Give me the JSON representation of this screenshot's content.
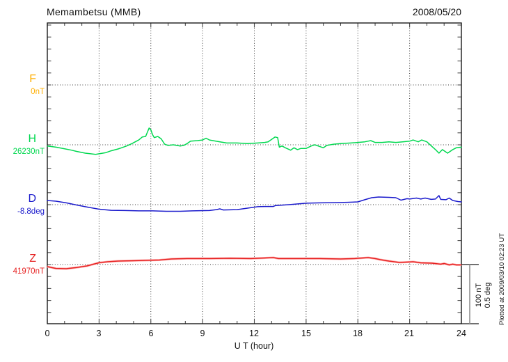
{
  "header": {
    "station_title": "Memambetsu (MMB)",
    "date": "2008/05/20"
  },
  "components": [
    {
      "id": "F",
      "label": "F",
      "value_label": "0nT",
      "color": "#FFAE00"
    },
    {
      "id": "H",
      "label": "H",
      "value_label": "26230nT",
      "color": "#00D84F"
    },
    {
      "id": "D",
      "label": "D",
      "value_label": "-8.8deg",
      "color": "#1A1ACC"
    },
    {
      "id": "Z",
      "label": "Z",
      "value_label": "41970nT",
      "color": "#E62222"
    }
  ],
  "x_axis": {
    "title": "U T (hour)",
    "ticks": [
      "0",
      "3",
      "6",
      "9",
      "12",
      "15",
      "18",
      "21",
      "24"
    ]
  },
  "scale_bar": {
    "line1": "100 nT",
    "line2": "0.5 deg"
  },
  "footer_note": "Plotted at 2009/03/10 02:23 UT",
  "colors": {
    "axis": "#1a1a1a",
    "tick": "#4a4a4a",
    "grid": "#3a3a3a",
    "scalebar": "#909090",
    "z_underlay": "#ffb0b0"
  },
  "chart_data": {
    "type": "line",
    "title": "Memambetsu (MMB) magnetogram 2008/05/20",
    "xlabel": "U T (hour)",
    "x_range": [
      0,
      24
    ],
    "x_tick_step": 3,
    "grid": "dotted vertical lines every 3 hours; dotted horizontal baseline per component",
    "legend_position": "left margin component labels",
    "scale": {
      "nT_per_division": 100,
      "deg_per_division": 0.5
    },
    "series": [
      {
        "name": "F",
        "unit": "nT",
        "baseline_value": 0,
        "per_div": 100,
        "note": "no data plotted",
        "points": []
      },
      {
        "name": "H",
        "unit": "nT",
        "baseline_value": 26230,
        "per_div": 100,
        "points": [
          [
            0,
            -2
          ],
          [
            0.5,
            -4
          ],
          [
            0.9,
            -6
          ],
          [
            1.4,
            -9
          ],
          [
            1.7,
            -11
          ],
          [
            2.2,
            -14
          ],
          [
            2.8,
            -16
          ],
          [
            3.0,
            -15
          ],
          [
            3.4,
            -13
          ],
          [
            3.7,
            -10
          ],
          [
            4.1,
            -7
          ],
          [
            4.3,
            -5
          ],
          [
            4.6,
            -2
          ],
          [
            4.9,
            2
          ],
          [
            5.1,
            5
          ],
          [
            5.3,
            8
          ],
          [
            5.5,
            13
          ],
          [
            5.7,
            14
          ],
          [
            5.8,
            21
          ],
          [
            5.9,
            28
          ],
          [
            6.0,
            25
          ],
          [
            6.1,
            17
          ],
          [
            6.2,
            12
          ],
          [
            6.4,
            14
          ],
          [
            6.6,
            10
          ],
          [
            6.8,
            1
          ],
          [
            7.0,
            -1
          ],
          [
            7.3,
            0
          ],
          [
            7.5,
            -1
          ],
          [
            7.7,
            -2
          ],
          [
            7.9,
            -1
          ],
          [
            8.1,
            2
          ],
          [
            8.3,
            6
          ],
          [
            8.7,
            7
          ],
          [
            9.0,
            8
          ],
          [
            9.2,
            11
          ],
          [
            9.4,
            8
          ],
          [
            9.6,
            7
          ],
          [
            10.0,
            5
          ],
          [
            10.4,
            3
          ],
          [
            11.0,
            3
          ],
          [
            11.6,
            2
          ],
          [
            12.2,
            3
          ],
          [
            12.6,
            4
          ],
          [
            12.8,
            5
          ],
          [
            13.0,
            9
          ],
          [
            13.2,
            13
          ],
          [
            13.35,
            12
          ],
          [
            13.45,
            -4
          ],
          [
            13.6,
            -2
          ],
          [
            13.8,
            -5
          ],
          [
            14.1,
            -9
          ],
          [
            14.3,
            -5
          ],
          [
            14.5,
            -8
          ],
          [
            14.7,
            -6
          ],
          [
            15.0,
            -6
          ],
          [
            15.3,
            -2
          ],
          [
            15.5,
            0
          ],
          [
            15.8,
            -3
          ],
          [
            16.0,
            -5
          ],
          [
            16.2,
            -1
          ],
          [
            16.6,
            1
          ],
          [
            17.0,
            2
          ],
          [
            17.6,
            3
          ],
          [
            18.0,
            4
          ],
          [
            18.4,
            5
          ],
          [
            18.75,
            7
          ],
          [
            19.0,
            4
          ],
          [
            19.4,
            4
          ],
          [
            19.8,
            5
          ],
          [
            20.2,
            4
          ],
          [
            20.6,
            5
          ],
          [
            21.0,
            6
          ],
          [
            21.2,
            8
          ],
          [
            21.5,
            5
          ],
          [
            21.7,
            8
          ],
          [
            22.0,
            5
          ],
          [
            22.3,
            -3
          ],
          [
            22.5,
            -8
          ],
          [
            22.7,
            -14
          ],
          [
            22.9,
            -8
          ],
          [
            23.2,
            -14
          ],
          [
            23.4,
            -10
          ],
          [
            23.5,
            -8
          ],
          [
            23.7,
            -5
          ],
          [
            24,
            -4
          ]
        ]
      },
      {
        "name": "D",
        "unit": "deg",
        "baseline_value": -8.8,
        "per_div": 0.5,
        "points": [
          [
            0,
            0.035
          ],
          [
            0.5,
            0.029
          ],
          [
            1.1,
            0.015
          ],
          [
            1.7,
            -0.003
          ],
          [
            2.3,
            -0.02
          ],
          [
            3.0,
            -0.038
          ],
          [
            3.7,
            -0.047
          ],
          [
            4.5,
            -0.049
          ],
          [
            5.3,
            -0.052
          ],
          [
            6.1,
            -0.052
          ],
          [
            6.9,
            -0.055
          ],
          [
            7.7,
            -0.055
          ],
          [
            8.4,
            -0.052
          ],
          [
            9.4,
            -0.049
          ],
          [
            9.8,
            -0.041
          ],
          [
            10.0,
            -0.035
          ],
          [
            10.2,
            -0.044
          ],
          [
            11.0,
            -0.041
          ],
          [
            11.6,
            -0.029
          ],
          [
            12.2,
            -0.017
          ],
          [
            12.6,
            -0.015
          ],
          [
            13.1,
            -0.015
          ],
          [
            13.2,
            -0.008
          ],
          [
            13.4,
            -0.006
          ],
          [
            14.0,
            0.0
          ],
          [
            15.0,
            0.012
          ],
          [
            15.8,
            0.015
          ],
          [
            16.6,
            0.017
          ],
          [
            17.4,
            0.02
          ],
          [
            18.0,
            0.023
          ],
          [
            18.4,
            0.041
          ],
          [
            18.8,
            0.058
          ],
          [
            19.2,
            0.064
          ],
          [
            19.8,
            0.061
          ],
          [
            20.2,
            0.058
          ],
          [
            20.5,
            0.038
          ],
          [
            20.85,
            0.05
          ],
          [
            21.0,
            0.047
          ],
          [
            21.4,
            0.055
          ],
          [
            21.65,
            0.047
          ],
          [
            21.9,
            0.055
          ],
          [
            22.25,
            0.044
          ],
          [
            22.5,
            0.047
          ],
          [
            22.7,
            0.076
          ],
          [
            22.8,
            0.044
          ],
          [
            23.1,
            0.041
          ],
          [
            23.3,
            0.055
          ],
          [
            23.5,
            0.035
          ],
          [
            23.8,
            0.026
          ],
          [
            24,
            0.023
          ]
        ]
      },
      {
        "name": "Z",
        "unit": "nT",
        "baseline_value": 41970,
        "per_div": 100,
        "points": [
          [
            0,
            -3.5
          ],
          [
            0.5,
            -6.5
          ],
          [
            1.1,
            -7
          ],
          [
            1.7,
            -5
          ],
          [
            2.3,
            -2.3
          ],
          [
            2.6,
            0
          ],
          [
            3.0,
            3
          ],
          [
            3.5,
            4.7
          ],
          [
            4.1,
            5.8
          ],
          [
            4.9,
            6.4
          ],
          [
            5.7,
            7
          ],
          [
            6.5,
            7.6
          ],
          [
            7.2,
            9.3
          ],
          [
            8.1,
            10
          ],
          [
            9.4,
            10
          ],
          [
            10.6,
            10.5
          ],
          [
            11.8,
            10
          ],
          [
            13.1,
            11.6
          ],
          [
            13.4,
            10
          ],
          [
            14.6,
            10
          ],
          [
            15.8,
            10
          ],
          [
            17.0,
            9.3
          ],
          [
            17.8,
            10
          ],
          [
            18.6,
            11.6
          ],
          [
            19.0,
            10
          ],
          [
            19.3,
            8.1
          ],
          [
            19.8,
            5.8
          ],
          [
            20.4,
            3.5
          ],
          [
            20.85,
            4.1
          ],
          [
            21.2,
            4.7
          ],
          [
            21.65,
            2.9
          ],
          [
            22.3,
            2.3
          ],
          [
            22.8,
            0.6
          ],
          [
            23.0,
            1.7
          ],
          [
            23.3,
            -0.6
          ],
          [
            23.5,
            0.6
          ],
          [
            23.7,
            -0.6
          ],
          [
            24,
            -0.6
          ]
        ]
      }
    ]
  }
}
